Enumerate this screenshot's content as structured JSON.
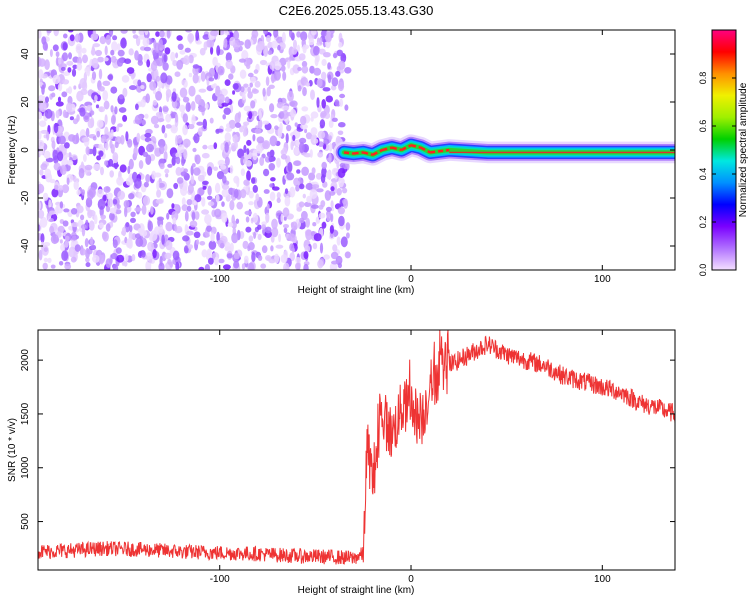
{
  "title": "C2E6.2025.055.13.43.G30",
  "chart_data": [
    {
      "type": "heatmap",
      "xlabel": "Height of straight line (km)",
      "ylabel": "Frequency (Hz)",
      "xlim": [
        -195,
        138
      ],
      "ylim": [
        -50,
        50
      ],
      "xticks": [
        -100,
        0,
        100
      ],
      "xtick_labels": [
        "-100",
        "0",
        "100"
      ],
      "yticks": [
        -40,
        -20,
        0,
        20,
        40
      ],
      "ytick_labels": [
        "-40",
        "-20",
        "0",
        "20",
        "40"
      ],
      "noise_region_x": [
        -195,
        -35
      ],
      "signal_line": {
        "x": [
          -35,
          -30,
          -25,
          -20,
          -15,
          -10,
          -5,
          0,
          5,
          10,
          20,
          40,
          60,
          80,
          100,
          120,
          138
        ],
        "y": [
          -1,
          -1.5,
          -1,
          -2,
          0,
          1,
          0,
          2,
          1,
          -1,
          0,
          -1,
          -1,
          -1,
          -1,
          -1,
          -1
        ]
      },
      "colorbar": {
        "label": "Normalized spectral amplitude",
        "range": [
          0,
          1
        ],
        "ticks": [
          0.0,
          0.2,
          0.4,
          0.6,
          0.8
        ],
        "tick_labels": [
          "0.0",
          "0.2",
          "0.4",
          "0.6",
          "0.8"
        ],
        "colors": [
          "#f4e0ff",
          "#b070ff",
          "#7a00ff",
          "#0000ff",
          "#0090ff",
          "#00e8e0",
          "#00d000",
          "#a0f000",
          "#f0f000",
          "#ff9000",
          "#ff0000",
          "#ff0080"
        ]
      }
    },
    {
      "type": "line",
      "xlabel": "Height of straight line (km)",
      "ylabel": "SNR (10 * v/v)",
      "xlim": [
        -195,
        138
      ],
      "ylim": [
        50,
        2280
      ],
      "xticks": [
        -100,
        0,
        100
      ],
      "xtick_labels": [
        "-100",
        "0",
        "100"
      ],
      "yticks": [
        500,
        1000,
        1500,
        2000
      ],
      "ytick_labels": [
        "500",
        "1000",
        "1500",
        "2000"
      ],
      "line_color": "#ee3333",
      "x": [
        -195,
        -180,
        -160,
        -140,
        -120,
        -100,
        -80,
        -60,
        -40,
        -30,
        -25,
        -23,
        -20,
        -15,
        -10,
        -5,
        0,
        5,
        10,
        15,
        20,
        25,
        30,
        35,
        40,
        45,
        50,
        60,
        70,
        80,
        90,
        100,
        110,
        120,
        130,
        138
      ],
      "y": [
        220,
        230,
        250,
        240,
        220,
        210,
        200,
        180,
        170,
        160,
        200,
        1200,
        900,
        1500,
        1300,
        1550,
        1600,
        1400,
        1750,
        1900,
        1950,
        2000,
        2050,
        2100,
        2150,
        2100,
        2050,
        2000,
        1950,
        1850,
        1800,
        1750,
        1700,
        1600,
        1550,
        1500
      ]
    }
  ]
}
